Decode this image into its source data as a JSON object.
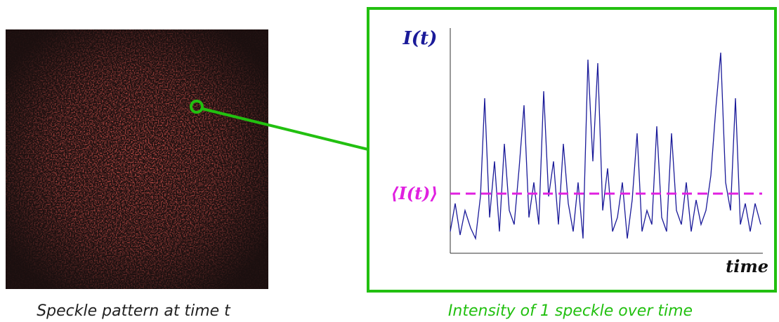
{
  "image_caption": "Speckle pattern at time t",
  "plot": {
    "y_label": "I(t)",
    "mean_label": "⟨I(t)⟩",
    "x_label": "time"
  },
  "plot_caption": "Intensity of 1 speckle over time"
}
